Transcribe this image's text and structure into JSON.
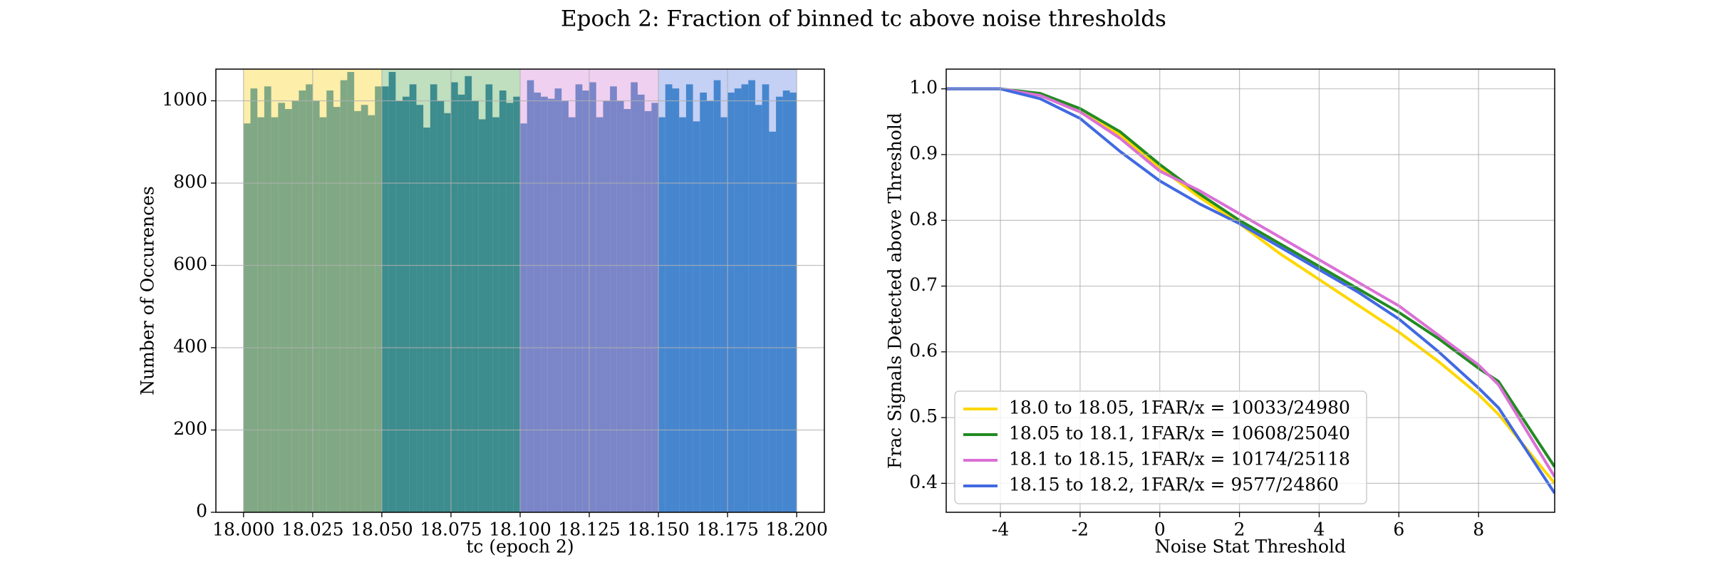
{
  "title": "Epoch 2: Fraction of binned tc above noise thresholds",
  "chart_data": [
    {
      "type": "histogram",
      "xlabel": "tc (epoch 2)",
      "ylabel": "Number of Occurences",
      "xlim": [
        17.99,
        18.21
      ],
      "ylim": [
        0,
        1077
      ],
      "xticks": [
        {
          "value": 18.0,
          "label": "18.000"
        },
        18.025,
        {
          "value": 18.05,
          "label": "18.050"
        },
        18.075,
        {
          "value": 18.1,
          "label": "18.100"
        },
        18.125,
        {
          "value": 18.15,
          "label": "18.150"
        },
        18.175,
        {
          "value": 18.2,
          "label": "18.200"
        }
      ],
      "yticks": [
        0,
        200,
        400,
        600,
        800,
        1000
      ],
      "grid": true,
      "spans": [
        {
          "range": [
            18.0,
            18.05
          ],
          "color": "#fdeea9"
        },
        {
          "range": [
            18.05,
            18.1
          ],
          "color": "#bfdfbf"
        },
        {
          "range": [
            18.1,
            18.15
          ],
          "color": "#f0d0f0"
        },
        {
          "range": [
            18.15,
            18.2
          ],
          "color": "#c4d0f4"
        }
      ],
      "series": [
        {
          "color": "#80a884",
          "bins": [
            18.0,
            18.0025,
            18.005,
            18.0075,
            18.01,
            18.0125,
            18.015,
            18.0175,
            18.02,
            18.0225,
            18.025,
            18.0275,
            18.03,
            18.0325,
            18.035,
            18.0375,
            18.04,
            18.0425,
            18.045,
            18.0475,
            18.05
          ],
          "values": [
            945,
            1030,
            960,
            1035,
            960,
            995,
            980,
            1000,
            1025,
            1040,
            1000,
            960,
            1025,
            985,
            1050,
            1070,
            975,
            990,
            965,
            1035
          ]
        },
        {
          "color": "#3d8c8e",
          "bins": [
            18.05,
            18.0525,
            18.055,
            18.0575,
            18.06,
            18.0625,
            18.065,
            18.0675,
            18.07,
            18.0725,
            18.075,
            18.0775,
            18.08,
            18.0825,
            18.085,
            18.0875,
            18.09,
            18.0925,
            18.095,
            18.0975,
            18.1
          ],
          "values": [
            1035,
            1070,
            1000,
            1010,
            1040,
            990,
            935,
            1040,
            1000,
            970,
            1045,
            1015,
            1060,
            1000,
            955,
            1040,
            960,
            1025,
            995,
            1010
          ]
        },
        {
          "color": "#7a86c8",
          "bins": [
            18.1,
            18.1025,
            18.105,
            18.1075,
            18.11,
            18.1125,
            18.115,
            18.1175,
            18.12,
            18.1225,
            18.125,
            18.1275,
            18.13,
            18.1325,
            18.135,
            18.1375,
            18.14,
            18.1425,
            18.145,
            18.1475,
            18.15
          ],
          "values": [
            945,
            1050,
            1020,
            1010,
            1005,
            1030,
            1000,
            960,
            1040,
            1025,
            1045,
            960,
            1000,
            1035,
            1000,
            980,
            1045,
            1015,
            975,
            995
          ]
        },
        {
          "color": "#4686cf",
          "bins": [
            18.15,
            18.1525,
            18.155,
            18.1575,
            18.16,
            18.1625,
            18.165,
            18.1675,
            18.17,
            18.1725,
            18.175,
            18.1775,
            18.18,
            18.1825,
            18.185,
            18.1875,
            18.19,
            18.1925,
            18.195,
            18.1975,
            18.2
          ],
          "values": [
            960,
            1040,
            1030,
            960,
            1040,
            950,
            1020,
            1000,
            1050,
            960,
            1020,
            1030,
            1040,
            1050,
            990,
            1040,
            925,
            1010,
            1025,
            1020
          ]
        }
      ]
    },
    {
      "type": "line",
      "xlabel": "Noise Stat Threshold",
      "ylabel": "Frac Signals Detected above Threshold",
      "xlim": [
        -5.36,
        9.91
      ],
      "ylim": [
        0.356,
        1.03
      ],
      "xticks": [
        -4,
        -2,
        0,
        2,
        4,
        6,
        8
      ],
      "yticks": [
        0.4,
        0.5,
        0.6,
        0.7,
        0.8,
        0.9,
        {
          "value": 1.0,
          "label": "1.0"
        }
      ],
      "grid": true,
      "legend": "lower left",
      "x": [
        -5.36,
        -4,
        -3,
        -2,
        -1,
        0,
        1,
        2,
        3,
        4,
        5,
        6,
        7,
        8,
        8.5,
        9.91
      ],
      "series": [
        {
          "name": "18.0 to 18.05, 1FAR/x = 10033/24980",
          "color": "#ffd700",
          "values": [
            1.0,
            1.0,
            0.99,
            0.965,
            0.93,
            0.88,
            0.835,
            0.795,
            0.75,
            0.71,
            0.67,
            0.63,
            0.585,
            0.535,
            0.505,
            0.4
          ]
        },
        {
          "name": "18.05 to 18.1, 1FAR/x = 10608/25040",
          "color": "#228b22",
          "values": [
            1.0,
            1.0,
            0.993,
            0.97,
            0.935,
            0.885,
            0.84,
            0.8,
            0.765,
            0.73,
            0.695,
            0.66,
            0.62,
            0.575,
            0.555,
            0.425
          ]
        },
        {
          "name": "18.1 to 18.15, 1FAR/x = 10174/25118",
          "color": "#da70d6",
          "values": [
            1.0,
            1.0,
            0.99,
            0.965,
            0.925,
            0.875,
            0.845,
            0.81,
            0.775,
            0.74,
            0.705,
            0.67,
            0.625,
            0.58,
            0.55,
            0.41
          ]
        },
        {
          "name": "18.15 to 18.2, 1FAR/x = 9577/24860",
          "color": "#4169e1",
          "values": [
            1.0,
            1.0,
            0.985,
            0.955,
            0.905,
            0.86,
            0.825,
            0.795,
            0.76,
            0.725,
            0.69,
            0.65,
            0.6,
            0.545,
            0.515,
            0.385
          ]
        }
      ]
    }
  ]
}
